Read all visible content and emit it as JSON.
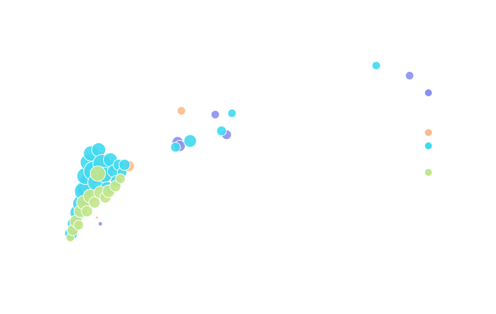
{
  "chart_data": {
    "type": "scatter",
    "title": "",
    "xlabel": "",
    "ylabel": "",
    "grid": false,
    "axes_visible": false,
    "xlim": [
      0,
      100
    ],
    "ylim": [
      0,
      100
    ],
    "legend_position": "right",
    "series": [
      {
        "color": "#8b8ff0",
        "points": [
          {
            "x": 2.2,
            "y": 17.0,
            "size": 6
          },
          {
            "x": 3.0,
            "y": 20.5,
            "size": 7
          },
          {
            "x": 4.0,
            "y": 27.0,
            "size": 6
          },
          {
            "x": 4.6,
            "y": 31.5,
            "size": 9
          },
          {
            "x": 5.2,
            "y": 35.5,
            "size": 10
          },
          {
            "x": 6.0,
            "y": 38.5,
            "size": 12
          },
          {
            "x": 7.2,
            "y": 41.0,
            "size": 11
          },
          {
            "x": 9.0,
            "y": 22.0,
            "size": 3
          },
          {
            "x": 9.6,
            "y": 43.5,
            "size": 10
          },
          {
            "x": 11.2,
            "y": 45.0,
            "size": 9
          },
          {
            "x": 27.5,
            "y": 54.5,
            "size": 8
          },
          {
            "x": 28.0,
            "y": 53.0,
            "size": 8
          },
          {
            "x": 36.5,
            "y": 65.5,
            "size": 6
          },
          {
            "x": 39.2,
            "y": 57.5,
            "size": 7
          },
          {
            "x": 83.0,
            "y": 81.0,
            "size": 6
          }
        ]
      },
      {
        "color": "#fdbb8a",
        "points": [
          {
            "x": 2.6,
            "y": 18.5,
            "size": 6
          },
          {
            "x": 3.4,
            "y": 22.0,
            "size": 8
          },
          {
            "x": 4.8,
            "y": 30.0,
            "size": 9
          },
          {
            "x": 6.4,
            "y": 36.0,
            "size": 10
          },
          {
            "x": 8.2,
            "y": 24.5,
            "size": 2
          },
          {
            "x": 9.2,
            "y": 48.0,
            "size": 9
          },
          {
            "x": 10.8,
            "y": 40.0,
            "size": 10
          },
          {
            "x": 13.6,
            "y": 44.0,
            "size": 9
          },
          {
            "x": 15.8,
            "y": 45.0,
            "size": 8
          },
          {
            "x": 28.4,
            "y": 67.0,
            "size": 6
          }
        ]
      },
      {
        "color": "#3fd9ef",
        "points": [
          {
            "x": 2.0,
            "y": 18.0,
            "size": 9
          },
          {
            "x": 2.8,
            "y": 22.0,
            "size": 10
          },
          {
            "x": 3.6,
            "y": 26.5,
            "size": 11
          },
          {
            "x": 4.4,
            "y": 30.0,
            "size": 12
          },
          {
            "x": 5.0,
            "y": 35.0,
            "size": 13
          },
          {
            "x": 5.4,
            "y": 41.0,
            "size": 12
          },
          {
            "x": 6.2,
            "y": 46.5,
            "size": 12
          },
          {
            "x": 6.8,
            "y": 50.0,
            "size": 11
          },
          {
            "x": 7.4,
            "y": 43.0,
            "size": 14
          },
          {
            "x": 8.0,
            "y": 38.5,
            "size": 12
          },
          {
            "x": 8.6,
            "y": 51.5,
            "size": 10
          },
          {
            "x": 9.4,
            "y": 46.0,
            "size": 13
          },
          {
            "x": 10.0,
            "y": 41.5,
            "size": 11
          },
          {
            "x": 10.6,
            "y": 36.0,
            "size": 10
          },
          {
            "x": 11.4,
            "y": 47.5,
            "size": 10
          },
          {
            "x": 12.2,
            "y": 43.0,
            "size": 9
          },
          {
            "x": 12.8,
            "y": 39.0,
            "size": 8
          },
          {
            "x": 13.4,
            "y": 45.5,
            "size": 8
          },
          {
            "x": 14.2,
            "y": 42.5,
            "size": 7
          },
          {
            "x": 14.8,
            "y": 45.5,
            "size": 8
          },
          {
            "x": 27.0,
            "y": 52.5,
            "size": 7
          },
          {
            "x": 30.5,
            "y": 55.0,
            "size": 9
          },
          {
            "x": 38.0,
            "y": 59.0,
            "size": 7
          },
          {
            "x": 40.5,
            "y": 66.0,
            "size": 6
          },
          {
            "x": 75.0,
            "y": 85.0,
            "size": 6
          }
        ]
      },
      {
        "color": "#c2e68a",
        "points": [
          {
            "x": 1.8,
            "y": 16.5,
            "size": 6
          },
          {
            "x": 2.4,
            "y": 19.5,
            "size": 8
          },
          {
            "x": 3.2,
            "y": 23.0,
            "size": 9
          },
          {
            "x": 3.8,
            "y": 21.5,
            "size": 7
          },
          {
            "x": 4.2,
            "y": 27.0,
            "size": 9
          },
          {
            "x": 5.0,
            "y": 30.5,
            "size": 10
          },
          {
            "x": 5.8,
            "y": 27.0,
            "size": 8
          },
          {
            "x": 6.6,
            "y": 33.0,
            "size": 10
          },
          {
            "x": 7.6,
            "y": 30.5,
            "size": 8
          },
          {
            "x": 8.4,
            "y": 42.0,
            "size": 11
          },
          {
            "x": 9.0,
            "y": 34.5,
            "size": 9
          },
          {
            "x": 10.2,
            "y": 32.5,
            "size": 8
          },
          {
            "x": 11.0,
            "y": 35.0,
            "size": 9
          },
          {
            "x": 12.6,
            "y": 37.0,
            "size": 8
          },
          {
            "x": 13.8,
            "y": 40.0,
            "size": 7
          }
        ]
      }
    ]
  }
}
